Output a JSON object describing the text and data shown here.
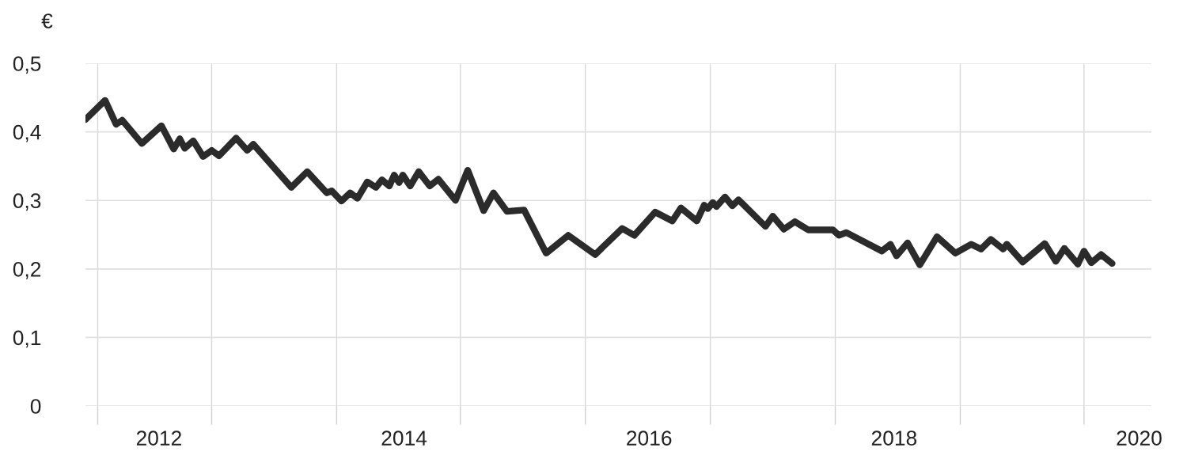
{
  "chart_data": {
    "type": "line",
    "ylabel": "€",
    "x": [
      2011.4,
      2011.56,
      2011.65,
      2011.7,
      2011.86,
      2012.02,
      2012.12,
      2012.17,
      2012.21,
      2012.28,
      2012.36,
      2012.43,
      2012.49,
      2012.63,
      2012.72,
      2012.77,
      2013.08,
      2013.21,
      2013.37,
      2013.41,
      2013.49,
      2013.56,
      2013.62,
      2013.7,
      2013.77,
      2013.82,
      2013.88,
      2013.92,
      2013.96,
      2013.99,
      2014.05,
      2014.12,
      2014.21,
      2014.28,
      2014.42,
      2014.52,
      2014.65,
      2014.73,
      2014.84,
      2014.98,
      2015.16,
      2015.34,
      2015.56,
      2015.78,
      2015.88,
      2016.05,
      2016.19,
      2016.26,
      2016.39,
      2016.45,
      2016.48,
      2016.52,
      2016.55,
      2016.62,
      2016.68,
      2016.73,
      2016.95,
      2017.01,
      2017.1,
      2017.19,
      2017.3,
      2017.5,
      2017.55,
      2017.61,
      2017.9,
      2017.97,
      2018.02,
      2018.11,
      2018.21,
      2018.35,
      2018.5,
      2018.63,
      2018.71,
      2018.79,
      2018.89,
      2018.92,
      2019.05,
      2019.23,
      2019.32,
      2019.39,
      2019.5,
      2019.55,
      2019.61,
      2019.69,
      2019.78
    ],
    "series": [
      {
        "color": "#2b2b2b",
        "values": [
          0.418,
          0.446,
          0.411,
          0.417,
          0.383,
          0.409,
          0.375,
          0.39,
          0.376,
          0.387,
          0.364,
          0.373,
          0.365,
          0.391,
          0.373,
          0.382,
          0.319,
          0.342,
          0.311,
          0.314,
          0.299,
          0.311,
          0.303,
          0.327,
          0.319,
          0.33,
          0.321,
          0.337,
          0.326,
          0.337,
          0.321,
          0.342,
          0.321,
          0.331,
          0.3,
          0.344,
          0.285,
          0.311,
          0.284,
          0.286,
          0.223,
          0.249,
          0.221,
          0.259,
          0.249,
          0.283,
          0.27,
          0.289,
          0.27,
          0.293,
          0.288,
          0.297,
          0.291,
          0.305,
          0.292,
          0.301,
          0.262,
          0.277,
          0.258,
          0.269,
          0.257,
          0.257,
          0.249,
          0.253,
          0.226,
          0.236,
          0.219,
          0.238,
          0.206,
          0.247,
          0.223,
          0.236,
          0.229,
          0.243,
          0.229,
          0.236,
          0.21,
          0.237,
          0.211,
          0.23,
          0.207,
          0.226,
          0.209,
          0.221,
          0.208
        ]
      }
    ],
    "xlim": [
      2011.4,
      2020.1
    ],
    "xticks": [
      {
        "value": 2011.5,
        "label": null
      },
      {
        "value": 2012.43,
        "label": null
      },
      {
        "value": 2013.45,
        "label": null
      },
      {
        "value": 2014.46,
        "label": null
      },
      {
        "value": 2015.48,
        "label": null
      },
      {
        "value": 2016.5,
        "label": null
      },
      {
        "value": 2017.52,
        "label": null
      },
      {
        "value": 2018.54,
        "label": null
      },
      {
        "value": 2019.55,
        "label": null
      },
      2012,
      2014,
      2016,
      2018,
      2020
    ],
    "ylim": [
      0,
      0.5
    ],
    "yticks": [
      0,
      {
        "value": 0.1,
        "label": "0,1"
      },
      {
        "value": 0.2,
        "label": "0,2"
      },
      {
        "value": 0.3,
        "label": "0,3"
      },
      {
        "value": 0.4,
        "label": "0,4"
      },
      {
        "value": 0.5,
        "label": "0,5"
      }
    ],
    "grid": true,
    "legend": false,
    "marker": "none",
    "line_style": "solid"
  }
}
